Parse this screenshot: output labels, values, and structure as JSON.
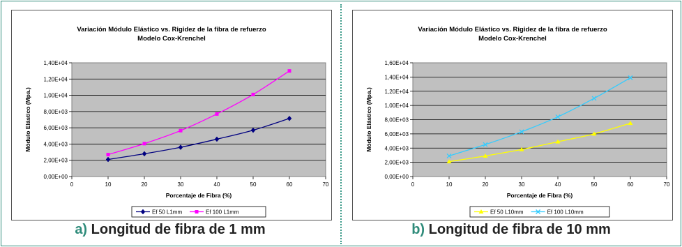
{
  "panels": [
    {
      "caption_letter": "a)",
      "caption_text": " Longitud de fibra de 1 mm",
      "chart_data": {
        "type": "line",
        "title_line1": "Variación Módulo Elástico vs. Rigidez de la fibra de refuerzo",
        "title_line2": "Modelo Cox-Krenchel",
        "xlabel": "Porcentaje de Fibra (%)",
        "ylabel": "Módulo Elástico (Mpa.)",
        "xlim": [
          0,
          70
        ],
        "ylim": [
          0,
          14000
        ],
        "x_ticks": [
          "0",
          "10",
          "20",
          "30",
          "40",
          "50",
          "60",
          "70"
        ],
        "y_ticks": [
          "0,00E+00",
          "2,00E+03",
          "4,00E+03",
          "6,00E+03",
          "8,00E+03",
          "1,00E+04",
          "1,20E+04",
          "1,40E+04"
        ],
        "grid": true,
        "plot_background": "#c0c0c0",
        "legend_position": "bottom",
        "series": [
          {
            "name": "Ef 50 L1mm",
            "color": "#000080",
            "marker": "diamond",
            "x": [
              10,
              20,
              30,
              40,
              50,
              60
            ],
            "y": [
              2100,
              2800,
              3600,
              4600,
              5700,
              7150
            ]
          },
          {
            "name": "Ef 100 L1mm",
            "color": "#ff00ff",
            "marker": "square",
            "x": [
              10,
              20,
              30,
              40,
              50,
              60
            ],
            "y": [
              2700,
              4050,
              5650,
              7700,
              10100,
              13000
            ]
          }
        ]
      }
    },
    {
      "caption_letter": "b)",
      "caption_text": " Longitud de fibra de 10 mm",
      "chart_data": {
        "type": "line",
        "title_line1": "Variación Módulo Elástico vs. Rigidez de la fibra de refuerzo",
        "title_line2": "Modelo Cox-Krenchel",
        "xlabel": "Porcentaje de Fibra (%)",
        "ylabel": "Módulo Elástico (Mpa.)",
        "xlim": [
          0,
          70
        ],
        "ylim": [
          0,
          16000
        ],
        "x_ticks": [
          "0",
          "10",
          "20",
          "30",
          "40",
          "50",
          "60",
          "70"
        ],
        "y_ticks": [
          "0,00E+00",
          "2,00E+03",
          "4,00E+03",
          "6,00E+03",
          "8,00E+03",
          "1,00E+04",
          "1,20E+04",
          "1,40E+04",
          "1,60E+04"
        ],
        "grid": true,
        "plot_background": "#c0c0c0",
        "legend_position": "bottom",
        "series": [
          {
            "name": "Ef 50 L10mm",
            "color": "#ffff00",
            "marker": "triangle",
            "x": [
              10,
              20,
              30,
              40,
              50,
              60
            ],
            "y": [
              2100,
              2900,
              3800,
              4900,
              6000,
              7500
            ]
          },
          {
            "name": "Ef 100 L10mm",
            "color": "#33ccff",
            "marker": "x",
            "x": [
              10,
              20,
              30,
              40,
              50,
              60
            ],
            "y": [
              2900,
              4500,
              6300,
              8400,
              11000,
              13900
            ]
          }
        ]
      }
    }
  ]
}
